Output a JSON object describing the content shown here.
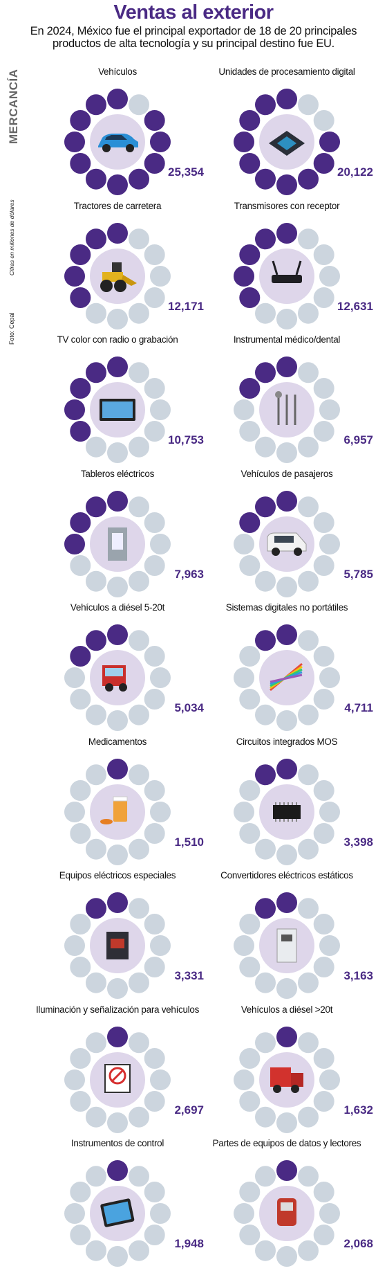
{
  "header": {
    "title": "Ventas al exterior",
    "subtitle_line1": "En 2024, México fue el principal exportador de 18 de 20 principales",
    "subtitle_line2": "productos de alta tecnología y su principal destino fue EU."
  },
  "side": {
    "mercancia": "MERCANCÍA",
    "cifras": "Cifras en millones de dólares",
    "foto": "Foto: Cepal"
  },
  "colors": {
    "purple": "#4a2a84",
    "grey": "#ccd5de",
    "center": "#ded6ea"
  },
  "chart_data": {
    "type": "radial-segment",
    "segments_per_ring": 12,
    "series": [
      {
        "name": "Vehículos",
        "value": 25354,
        "value_label": "25,354",
        "filled_segments": 11,
        "icon": "car-icon"
      },
      {
        "name": "Unidades de procesamiento digital",
        "value": 20122,
        "value_label": "20,122",
        "filled_segments": 10,
        "icon": "processor-icon"
      },
      {
        "name": "Tractores de carretera",
        "value": 12171,
        "value_label": "12,171",
        "filled_segments": 5,
        "icon": "tractor-icon"
      },
      {
        "name": "Transmisores con receptor",
        "value": 12631,
        "value_label": "12,631",
        "filled_segments": 5,
        "icon": "router-icon"
      },
      {
        "name": "TV color con radio o grabación",
        "value": 10753,
        "value_label": "10,753",
        "filled_segments": 5,
        "icon": "tv-icon"
      },
      {
        "name": "Instrumental médico/dental",
        "value": 6957,
        "value_label": "6,957",
        "filled_segments": 3,
        "icon": "dental-tools-icon"
      },
      {
        "name": "Tableros eléctricos",
        "value": 7963,
        "value_label": "7,963",
        "filled_segments": 4,
        "icon": "electric-panel-icon"
      },
      {
        "name": "Vehículos de pasajeros",
        "value": 5785,
        "value_label": "5,785",
        "filled_segments": 3,
        "icon": "van-icon"
      },
      {
        "name": "Vehículos a diésel 5-20t",
        "value": 5034,
        "value_label": "5,034",
        "filled_segments": 3,
        "icon": "truck-icon"
      },
      {
        "name": "Sistemas digitales no portátiles",
        "value": 4711,
        "value_label": "4,711",
        "filled_segments": 2,
        "icon": "fiber-cable-icon"
      },
      {
        "name": "Medicamentos",
        "value": 1510,
        "value_label": "1,510",
        "filled_segments": 1,
        "icon": "pills-icon"
      },
      {
        "name": "Circuitos integrados MOS",
        "value": 3398,
        "value_label": "3,398",
        "filled_segments": 2,
        "icon": "chip-icon"
      },
      {
        "name": "Equipos eléctricos especiales",
        "value": 3331,
        "value_label": "3,331",
        "filled_segments": 2,
        "icon": "breaker-icon"
      },
      {
        "name": "Convertidores eléctricos estáticos",
        "value": 3163,
        "value_label": "3,163",
        "filled_segments": 2,
        "icon": "converter-icon"
      },
      {
        "name": "Iluminación y señalización para vehículos",
        "value": 2697,
        "value_label": "2,697",
        "filled_segments": 1,
        "icon": "traffic-sign-icon"
      },
      {
        "name": "Vehículos a diésel >20t",
        "value": 1632,
        "value_label": "1,632",
        "filled_segments": 1,
        "icon": "red-truck-icon"
      },
      {
        "name": "Instrumentos de control",
        "value": 1948,
        "value_label": "1,948",
        "filled_segments": 1,
        "icon": "tablet-icon"
      },
      {
        "name": "Partes de equipos de datos y lectores",
        "value": 2068,
        "value_label": "2,068",
        "filled_segments": 1,
        "icon": "scanner-icon"
      }
    ]
  }
}
